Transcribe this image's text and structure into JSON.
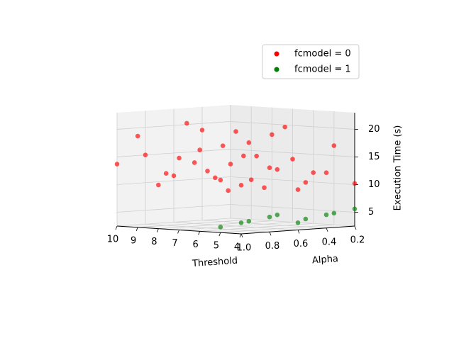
{
  "chart_data": {
    "type": "scatter3d",
    "x_label": "Threshold",
    "y_label": "Alpha",
    "z_label": "Execution Time (s)",
    "xlim": [
      4,
      10
    ],
    "ylim": [
      0.2,
      1
    ],
    "zlim": [
      2.5,
      23
    ],
    "xticks": [
      4,
      5,
      6,
      7,
      8,
      9,
      10
    ],
    "yticks": [
      0.2,
      0.4,
      0.6,
      0.8,
      {
        "value": 1,
        "label": "1.0"
      }
    ],
    "zticks": [
      5,
      10,
      15,
      20
    ],
    "grid": true,
    "legend": "upper right",
    "series": [
      {
        "name": "fcmodel = 0",
        "color": "#ff0000",
        "x": [
          4,
          4,
          4,
          4,
          4,
          5,
          5,
          5,
          5,
          5,
          6,
          6,
          6,
          6,
          6,
          7,
          7,
          7,
          7,
          7,
          8,
          8,
          8,
          8,
          8,
          9,
          9,
          9,
          9,
          9,
          10,
          10,
          10,
          10,
          10
        ],
        "y": [
          0.2,
          0.4,
          0.6,
          0.8,
          1,
          0.2,
          0.4,
          0.6,
          0.8,
          1,
          0.2,
          0.4,
          0.6,
          0.8,
          1,
          0.2,
          0.4,
          0.6,
          0.8,
          1,
          0.2,
          0.4,
          0.6,
          0.8,
          1,
          0.2,
          0.4,
          0.6,
          0.8,
          1,
          0.2,
          0.4,
          0.6,
          0.8,
          1
        ],
        "z": [
          10.2,
          12.5,
          9.8,
          14.1,
          11.3,
          16.8,
          10.5,
          13.2,
          18.4,
          12.0,
          11.7,
          20.3,
          15.4,
          9.5,
          17.2,
          13.9,
          9.1,
          19.6,
          12.8,
          15.5,
          18.1,
          14.6,
          11.0,
          21.2,
          10.4,
          9.7,
          16.2,
          13.5,
          11.9,
          19.0,
          12.3,
          18.8,
          10.9,
          15.0,
          13.7
        ]
      },
      {
        "name": "fcmodel = 1",
        "color": "#008000",
        "x": [
          4,
          4,
          4,
          4,
          4,
          5,
          5,
          5,
          5,
          5
        ],
        "y": [
          1,
          0.8,
          0.6,
          0.4,
          0.2,
          1,
          0.8,
          0.6,
          0.4,
          0.2
        ],
        "z": [
          4.5,
          5.2,
          3.8,
          4.9,
          5.6,
          3.5,
          4.2,
          5.0,
          3.9,
          4.6
        ]
      }
    ]
  }
}
